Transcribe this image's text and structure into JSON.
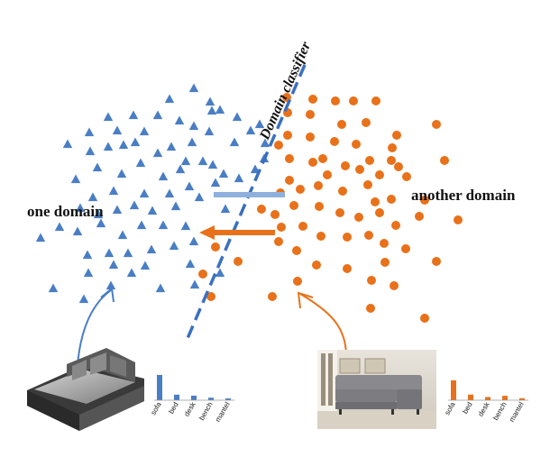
{
  "labels": {
    "left_domain": "one domain",
    "right_domain": "another domain",
    "classifier": "Domain classifier"
  },
  "colors": {
    "blue": "#4a7ec4",
    "orange": "#e8711a",
    "light_blue": "#8fb0dc"
  },
  "histograms": {
    "categories": [
      "sofa",
      "bed",
      "desk",
      "bench",
      "mantel"
    ],
    "left_values": [
      1.0,
      0.22,
      0.18,
      0.1,
      0.07
    ],
    "right_values": [
      1.0,
      0.28,
      0.16,
      0.22,
      0.1
    ]
  },
  "icons": {
    "left_image": "3d-sofa-model-render",
    "right_image": "gray-sectional-sofa-photo"
  }
}
